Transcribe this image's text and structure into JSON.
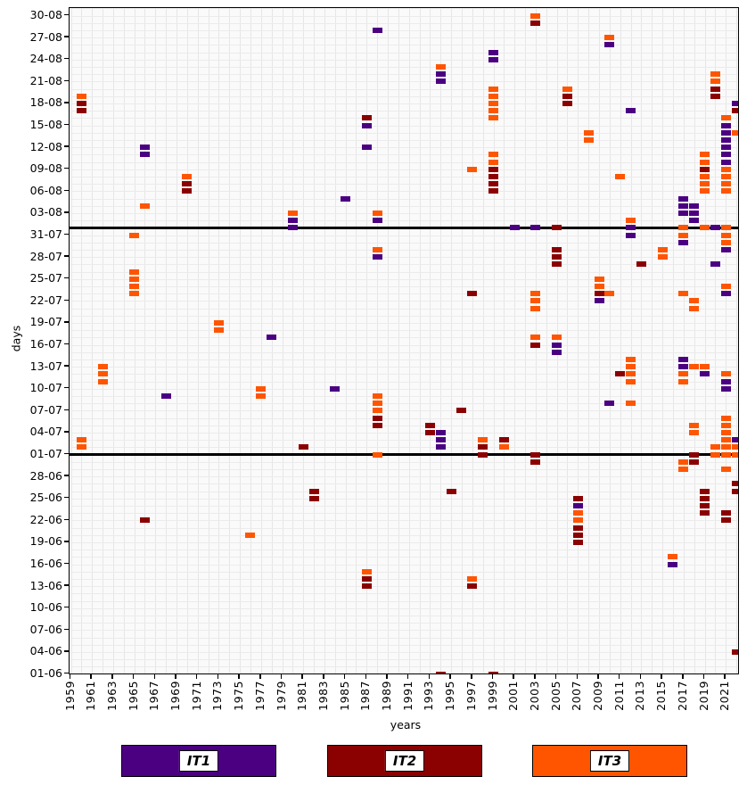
{
  "chart_data": {
    "type": "scatter",
    "title": "",
    "xlabel": "years",
    "ylabel": "days",
    "grid": true,
    "x_range": [
      1959,
      2022
    ],
    "x_tick_labels": [
      "1959",
      "1961",
      "1963",
      "1965",
      "1967",
      "1969",
      "1971",
      "1973",
      "1975",
      "1977",
      "1979",
      "1981",
      "1983",
      "1985",
      "1987",
      "1989",
      "1991",
      "1993",
      "1995",
      "1997",
      "1999",
      "2001",
      "2003",
      "2005",
      "2007",
      "2009",
      "2011",
      "2013",
      "2015",
      "2017",
      "2019",
      "2021"
    ],
    "y_tick_labels": [
      "30-08",
      "27-08",
      "24-08",
      "21-08",
      "18-08",
      "15-08",
      "12-08",
      "09-08",
      "06-08",
      "03-08",
      "31-07",
      "28-07",
      "25-07",
      "22-07",
      "19-07",
      "16-07",
      "13-07",
      "10-07",
      "07-07",
      "04-07",
      "01-07",
      "28-06",
      "25-06",
      "22-06",
      "19-06",
      "16-06",
      "13-06",
      "10-06",
      "07-06",
      "04-06",
      "01-06"
    ],
    "reference_lines": [
      "01-08",
      "01-07"
    ],
    "legend": {
      "position": "bottom",
      "items": [
        {
          "label": "IT1",
          "color": "#4B0082"
        },
        {
          "label": "IT2",
          "color": "#8B0000"
        },
        {
          "label": "IT3",
          "color": "#FF5500"
        }
      ]
    },
    "series_colors": {
      "IT1": "#4B0082",
      "IT2": "#8B0000",
      "IT3": "#FF5500"
    },
    "points": [
      [
        1960,
        "19-08",
        "IT3"
      ],
      [
        1960,
        "18-08",
        "IT2"
      ],
      [
        1960,
        "17-08",
        "IT2"
      ],
      [
        1960,
        "03-07",
        "IT3"
      ],
      [
        1960,
        "02-07",
        "IT3"
      ],
      [
        1962,
        "13-07",
        "IT3"
      ],
      [
        1962,
        "12-07",
        "IT3"
      ],
      [
        1962,
        "11-07",
        "IT3"
      ],
      [
        1965,
        "31-07",
        "IT3"
      ],
      [
        1965,
        "26-07",
        "IT3"
      ],
      [
        1965,
        "25-07",
        "IT3"
      ],
      [
        1965,
        "24-07",
        "IT3"
      ],
      [
        1965,
        "23-07",
        "IT3"
      ],
      [
        1966,
        "12-08",
        "IT1"
      ],
      [
        1966,
        "11-08",
        "IT1"
      ],
      [
        1966,
        "04-08",
        "IT3"
      ],
      [
        1966,
        "22-06",
        "IT2"
      ],
      [
        1968,
        "09-07",
        "IT1"
      ],
      [
        1970,
        "08-08",
        "IT3"
      ],
      [
        1970,
        "07-08",
        "IT2"
      ],
      [
        1970,
        "06-08",
        "IT2"
      ],
      [
        1973,
        "19-07",
        "IT3"
      ],
      [
        1973,
        "18-07",
        "IT3"
      ],
      [
        1976,
        "20-06",
        "IT3"
      ],
      [
        1977,
        "10-07",
        "IT3"
      ],
      [
        1977,
        "09-07",
        "IT3"
      ],
      [
        1978,
        "17-07",
        "IT1"
      ],
      [
        1980,
        "03-08",
        "IT3"
      ],
      [
        1980,
        "02-08",
        "IT1"
      ],
      [
        1980,
        "01-08",
        "IT1"
      ],
      [
        1981,
        "02-07",
        "IT2"
      ],
      [
        1982,
        "26-06",
        "IT2"
      ],
      [
        1982,
        "25-06",
        "IT2"
      ],
      [
        1984,
        "10-07",
        "IT1"
      ],
      [
        1985,
        "05-08",
        "IT1"
      ],
      [
        1987,
        "16-08",
        "IT2"
      ],
      [
        1987,
        "15-08",
        "IT1"
      ],
      [
        1987,
        "12-08",
        "IT1"
      ],
      [
        1987,
        "15-06",
        "IT3"
      ],
      [
        1987,
        "14-06",
        "IT2"
      ],
      [
        1987,
        "13-06",
        "IT2"
      ],
      [
        1988,
        "28-08",
        "IT1"
      ],
      [
        1988,
        "03-08",
        "IT3"
      ],
      [
        1988,
        "02-08",
        "IT1"
      ],
      [
        1988,
        "29-07",
        "IT3"
      ],
      [
        1988,
        "28-07",
        "IT1"
      ],
      [
        1988,
        "09-07",
        "IT3"
      ],
      [
        1988,
        "08-07",
        "IT3"
      ],
      [
        1988,
        "07-07",
        "IT3"
      ],
      [
        1988,
        "06-07",
        "IT2"
      ],
      [
        1988,
        "05-07",
        "IT2"
      ],
      [
        1988,
        "01-07",
        "IT3"
      ],
      [
        1993,
        "05-07",
        "IT2"
      ],
      [
        1993,
        "04-07",
        "IT2"
      ],
      [
        1994,
        "23-08",
        "IT3"
      ],
      [
        1994,
        "22-08",
        "IT1"
      ],
      [
        1994,
        "21-08",
        "IT1"
      ],
      [
        1994,
        "04-07",
        "IT1"
      ],
      [
        1994,
        "03-07",
        "IT1"
      ],
      [
        1994,
        "02-07",
        "IT1"
      ],
      [
        1994,
        "01-06",
        "IT2"
      ],
      [
        1995,
        "26-06",
        "IT2"
      ],
      [
        1996,
        "07-07",
        "IT2"
      ],
      [
        1997,
        "09-08",
        "IT3"
      ],
      [
        1997,
        "23-07",
        "IT2"
      ],
      [
        1997,
        "14-06",
        "IT3"
      ],
      [
        1997,
        "13-06",
        "IT2"
      ],
      [
        1998,
        "03-07",
        "IT3"
      ],
      [
        1998,
        "02-07",
        "IT2"
      ],
      [
        1998,
        "01-07",
        "IT2"
      ],
      [
        1999,
        "25-08",
        "IT1"
      ],
      [
        1999,
        "24-08",
        "IT1"
      ],
      [
        1999,
        "20-08",
        "IT3"
      ],
      [
        1999,
        "19-08",
        "IT3"
      ],
      [
        1999,
        "18-08",
        "IT3"
      ],
      [
        1999,
        "17-08",
        "IT3"
      ],
      [
        1999,
        "16-08",
        "IT3"
      ],
      [
        1999,
        "11-08",
        "IT3"
      ],
      [
        1999,
        "10-08",
        "IT3"
      ],
      [
        1999,
        "09-08",
        "IT2"
      ],
      [
        1999,
        "08-08",
        "IT2"
      ],
      [
        1999,
        "07-08",
        "IT2"
      ],
      [
        1999,
        "06-08",
        "IT2"
      ],
      [
        1999,
        "01-06",
        "IT2"
      ],
      [
        2000,
        "03-07",
        "IT2"
      ],
      [
        2000,
        "02-07",
        "IT3"
      ],
      [
        2001,
        "01-08",
        "IT1"
      ],
      [
        2003,
        "30-08",
        "IT3"
      ],
      [
        2003,
        "29-08",
        "IT2"
      ],
      [
        2003,
        "01-08",
        "IT1"
      ],
      [
        2003,
        "23-07",
        "IT3"
      ],
      [
        2003,
        "22-07",
        "IT3"
      ],
      [
        2003,
        "21-07",
        "IT3"
      ],
      [
        2003,
        "17-07",
        "IT3"
      ],
      [
        2003,
        "16-07",
        "IT2"
      ],
      [
        2003,
        "01-07",
        "IT2"
      ],
      [
        2003,
        "30-06",
        "IT2"
      ],
      [
        2005,
        "01-08",
        "IT2"
      ],
      [
        2005,
        "29-07",
        "IT2"
      ],
      [
        2005,
        "28-07",
        "IT2"
      ],
      [
        2005,
        "27-07",
        "IT2"
      ],
      [
        2005,
        "17-07",
        "IT3"
      ],
      [
        2005,
        "16-07",
        "IT1"
      ],
      [
        2005,
        "15-07",
        "IT1"
      ],
      [
        2006,
        "20-08",
        "IT3"
      ],
      [
        2006,
        "19-08",
        "IT2"
      ],
      [
        2006,
        "18-08",
        "IT2"
      ],
      [
        2007,
        "25-06",
        "IT2"
      ],
      [
        2007,
        "24-06",
        "IT1"
      ],
      [
        2007,
        "23-06",
        "IT3"
      ],
      [
        2007,
        "22-06",
        "IT3"
      ],
      [
        2007,
        "21-06",
        "IT2"
      ],
      [
        2007,
        "20-06",
        "IT2"
      ],
      [
        2007,
        "19-06",
        "IT2"
      ],
      [
        2008,
        "14-08",
        "IT3"
      ],
      [
        2008,
        "13-08",
        "IT3"
      ],
      [
        2009,
        "25-07",
        "IT3"
      ],
      [
        2009,
        "24-07",
        "IT3"
      ],
      [
        2009,
        "23-07",
        "IT2"
      ],
      [
        2009,
        "22-07",
        "IT1"
      ],
      [
        2010,
        "27-08",
        "IT3"
      ],
      [
        2010,
        "26-08",
        "IT1"
      ],
      [
        2010,
        "23-07",
        "IT3"
      ],
      [
        2010,
        "08-07",
        "IT1"
      ],
      [
        2011,
        "08-08",
        "IT3"
      ],
      [
        2011,
        "12-07",
        "IT2"
      ],
      [
        2012,
        "17-08",
        "IT1"
      ],
      [
        2012,
        "02-08",
        "IT3"
      ],
      [
        2012,
        "01-08",
        "IT1"
      ],
      [
        2012,
        "31-07",
        "IT1"
      ],
      [
        2012,
        "14-07",
        "IT3"
      ],
      [
        2012,
        "13-07",
        "IT3"
      ],
      [
        2012,
        "12-07",
        "IT3"
      ],
      [
        2012,
        "11-07",
        "IT3"
      ],
      [
        2012,
        "08-07",
        "IT3"
      ],
      [
        2013,
        "27-07",
        "IT2"
      ],
      [
        2015,
        "29-07",
        "IT3"
      ],
      [
        2015,
        "28-07",
        "IT3"
      ],
      [
        2016,
        "17-06",
        "IT3"
      ],
      [
        2016,
        "16-06",
        "IT1"
      ],
      [
        2017,
        "05-08",
        "IT1"
      ],
      [
        2017,
        "04-08",
        "IT1"
      ],
      [
        2017,
        "03-08",
        "IT1"
      ],
      [
        2017,
        "01-08",
        "IT3"
      ],
      [
        2017,
        "31-07",
        "IT3"
      ],
      [
        2017,
        "30-07",
        "IT1"
      ],
      [
        2017,
        "23-07",
        "IT3"
      ],
      [
        2017,
        "14-07",
        "IT1"
      ],
      [
        2017,
        "13-07",
        "IT1"
      ],
      [
        2017,
        "12-07",
        "IT3"
      ],
      [
        2017,
        "11-07",
        "IT3"
      ],
      [
        2017,
        "30-06",
        "IT3"
      ],
      [
        2017,
        "29-06",
        "IT3"
      ],
      [
        2018,
        "04-08",
        "IT1"
      ],
      [
        2018,
        "03-08",
        "IT1"
      ],
      [
        2018,
        "02-08",
        "IT1"
      ],
      [
        2018,
        "22-07",
        "IT3"
      ],
      [
        2018,
        "21-07",
        "IT3"
      ],
      [
        2018,
        "13-07",
        "IT3"
      ],
      [
        2018,
        "05-07",
        "IT3"
      ],
      [
        2018,
        "04-07",
        "IT3"
      ],
      [
        2018,
        "01-07",
        "IT2"
      ],
      [
        2018,
        "30-06",
        "IT2"
      ],
      [
        2019,
        "11-08",
        "IT3"
      ],
      [
        2019,
        "10-08",
        "IT3"
      ],
      [
        2019,
        "09-08",
        "IT2"
      ],
      [
        2019,
        "08-08",
        "IT3"
      ],
      [
        2019,
        "07-08",
        "IT3"
      ],
      [
        2019,
        "06-08",
        "IT3"
      ],
      [
        2019,
        "01-08",
        "IT3"
      ],
      [
        2019,
        "13-07",
        "IT3"
      ],
      [
        2019,
        "12-07",
        "IT1"
      ],
      [
        2019,
        "26-06",
        "IT2"
      ],
      [
        2019,
        "25-06",
        "IT2"
      ],
      [
        2019,
        "24-06",
        "IT2"
      ],
      [
        2019,
        "23-06",
        "IT2"
      ],
      [
        2020,
        "22-08",
        "IT3"
      ],
      [
        2020,
        "21-08",
        "IT3"
      ],
      [
        2020,
        "20-08",
        "IT2"
      ],
      [
        2020,
        "19-08",
        "IT2"
      ],
      [
        2020,
        "01-08",
        "IT1"
      ],
      [
        2020,
        "27-07",
        "IT1"
      ],
      [
        2020,
        "02-07",
        "IT3"
      ],
      [
        2020,
        "01-07",
        "IT3"
      ],
      [
        2021,
        "16-08",
        "IT3"
      ],
      [
        2021,
        "15-08",
        "IT1"
      ],
      [
        2021,
        "14-08",
        "IT1"
      ],
      [
        2021,
        "13-08",
        "IT1"
      ],
      [
        2021,
        "12-08",
        "IT1"
      ],
      [
        2021,
        "11-08",
        "IT1"
      ],
      [
        2021,
        "10-08",
        "IT1"
      ],
      [
        2021,
        "09-08",
        "IT3"
      ],
      [
        2021,
        "08-08",
        "IT3"
      ],
      [
        2021,
        "07-08",
        "IT3"
      ],
      [
        2021,
        "06-08",
        "IT3"
      ],
      [
        2021,
        "01-08",
        "IT3"
      ],
      [
        2021,
        "31-07",
        "IT3"
      ],
      [
        2021,
        "30-07",
        "IT3"
      ],
      [
        2021,
        "29-07",
        "IT1"
      ],
      [
        2021,
        "24-07",
        "IT3"
      ],
      [
        2021,
        "23-07",
        "IT1"
      ],
      [
        2021,
        "12-07",
        "IT3"
      ],
      [
        2021,
        "11-07",
        "IT1"
      ],
      [
        2021,
        "10-07",
        "IT1"
      ],
      [
        2021,
        "06-07",
        "IT3"
      ],
      [
        2021,
        "05-07",
        "IT3"
      ],
      [
        2021,
        "04-07",
        "IT3"
      ],
      [
        2021,
        "03-07",
        "IT3"
      ],
      [
        2021,
        "02-07",
        "IT3"
      ],
      [
        2021,
        "01-07",
        "IT3"
      ],
      [
        2021,
        "29-06",
        "IT3"
      ],
      [
        2021,
        "23-06",
        "IT2"
      ],
      [
        2021,
        "22-06",
        "IT2"
      ],
      [
        2022,
        "18-08",
        "IT1"
      ],
      [
        2022,
        "17-08",
        "IT2"
      ],
      [
        2022,
        "14-08",
        "IT3"
      ],
      [
        2022,
        "03-07",
        "IT1"
      ],
      [
        2022,
        "02-07",
        "IT3"
      ],
      [
        2022,
        "01-07",
        "IT3"
      ],
      [
        2022,
        "27-06",
        "IT2"
      ],
      [
        2022,
        "26-06",
        "IT2"
      ],
      [
        2022,
        "04-06",
        "IT2"
      ]
    ]
  }
}
